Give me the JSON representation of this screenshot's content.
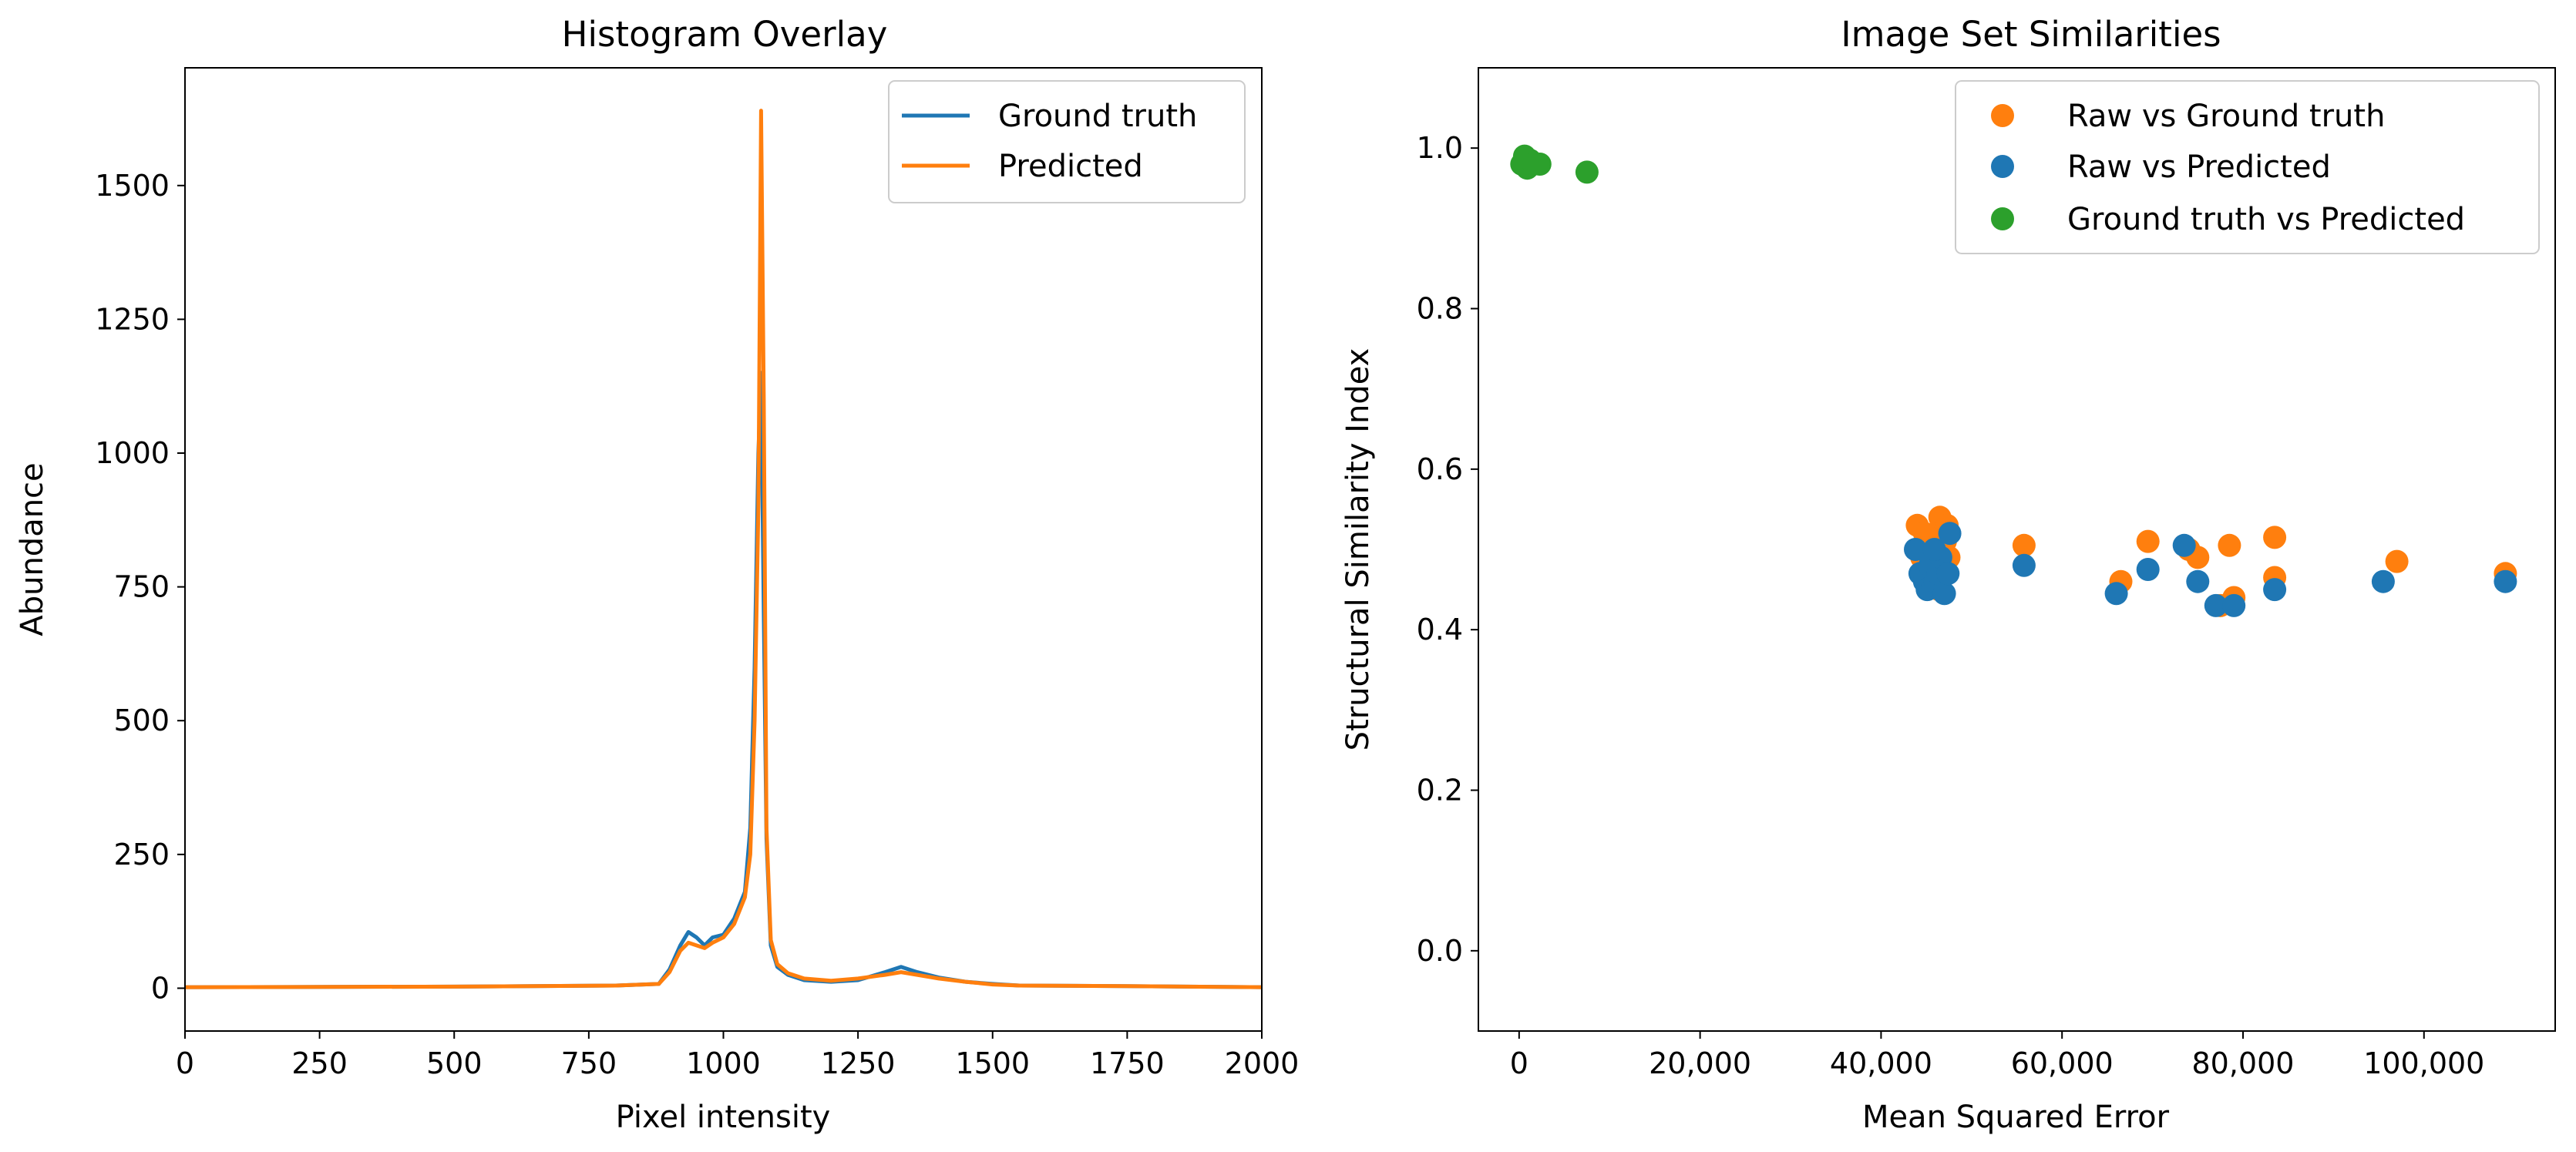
{
  "chart_data": [
    {
      "type": "line",
      "title": "Histogram Overlay",
      "xlabel": "Pixel intensity",
      "ylabel": "Abundance",
      "xlim": [
        0,
        2000
      ],
      "ylim": [
        -80,
        1720
      ],
      "xticks": [
        0,
        250,
        500,
        750,
        1000,
        1250,
        1500,
        1750,
        2000
      ],
      "xtick_labels": [
        "0",
        "250",
        "500",
        "750",
        "1000",
        "1250",
        "1500",
        "1750",
        "2000"
      ],
      "yticks": [
        0,
        250,
        500,
        750,
        1000,
        1250,
        1500
      ],
      "ytick_labels": [
        "0",
        "250",
        "500",
        "750",
        "1000",
        "1250",
        "1500"
      ],
      "grid": false,
      "legend_position": "top-right",
      "series": [
        {
          "name": "Ground truth",
          "color": "#1f77b4",
          "x": [
            0,
            500,
            800,
            880,
            900,
            920,
            935,
            950,
            965,
            980,
            1000,
            1020,
            1040,
            1050,
            1058,
            1065,
            1070,
            1075,
            1080,
            1088,
            1100,
            1120,
            1150,
            1200,
            1250,
            1300,
            1330,
            1360,
            1400,
            1450,
            1500,
            1550,
            1750,
            2000
          ],
          "values": [
            2,
            3,
            5,
            8,
            35,
            80,
            105,
            95,
            80,
            95,
            100,
            130,
            180,
            300,
            600,
            1000,
            1150,
            700,
            280,
            80,
            40,
            25,
            15,
            12,
            15,
            30,
            40,
            30,
            20,
            12,
            8,
            5,
            4,
            2
          ]
        },
        {
          "name": "Predicted",
          "color": "#ff7f0e",
          "x": [
            0,
            500,
            800,
            880,
            900,
            920,
            935,
            950,
            965,
            980,
            1000,
            1020,
            1040,
            1050,
            1058,
            1065,
            1070,
            1075,
            1080,
            1088,
            1100,
            1120,
            1150,
            1200,
            1250,
            1300,
            1330,
            1360,
            1400,
            1450,
            1500,
            1550,
            1750,
            2000
          ],
          "values": [
            2,
            3,
            5,
            8,
            30,
            70,
            85,
            80,
            75,
            85,
            95,
            120,
            170,
            250,
            500,
            900,
            1640,
            1100,
            300,
            90,
            45,
            28,
            18,
            14,
            18,
            25,
            30,
            25,
            18,
            12,
            7,
            5,
            4,
            2
          ]
        }
      ]
    },
    {
      "type": "scatter",
      "title": "Image Set Similarities",
      "xlabel": "Mean Squared Error",
      "ylabel": "Structural Similarity Index",
      "xlim": [
        -4500,
        114500
      ],
      "ylim": [
        -0.1,
        1.1
      ],
      "xticks": [
        0,
        20000,
        40000,
        60000,
        80000,
        100000
      ],
      "xtick_labels": [
        "0",
        "20,000",
        "40,000",
        "60,000",
        "80,000",
        "100,000"
      ],
      "yticks": [
        0.0,
        0.2,
        0.4,
        0.6,
        0.8,
        1.0
      ],
      "ytick_labels": [
        "0.0",
        "0.2",
        "0.4",
        "0.6",
        "0.8",
        "1.0"
      ],
      "grid": false,
      "legend_position": "top-right",
      "series": [
        {
          "name": "Raw vs Ground truth",
          "color": "#ff7f0e",
          "x": [
            44000,
            44500,
            45000,
            45200,
            45500,
            45800,
            46000,
            46200,
            46500,
            46800,
            47000,
            47300,
            47500,
            44800,
            45600,
            46400,
            47100,
            55800,
            66500,
            69500,
            74000,
            75000,
            77500,
            78500,
            79000,
            83500,
            83500,
            97000,
            109000
          ],
          "values": [
            0.53,
            0.49,
            0.5,
            0.47,
            0.51,
            0.46,
            0.52,
            0.48,
            0.54,
            0.5,
            0.47,
            0.53,
            0.49,
            0.52,
            0.48,
            0.45,
            0.51,
            0.505,
            0.46,
            0.51,
            0.5,
            0.49,
            0.43,
            0.505,
            0.44,
            0.515,
            0.465,
            0.485,
            0.47
          ]
        },
        {
          "name": "Raw vs Predicted",
          "color": "#1f77b4",
          "x": [
            43800,
            44300,
            44800,
            45100,
            45400,
            45700,
            46000,
            46300,
            46600,
            47000,
            47400,
            47600,
            45900,
            55800,
            66000,
            69500,
            73500,
            75000,
            77000,
            79000,
            83500,
            95500,
            109000
          ],
          "values": [
            0.5,
            0.47,
            0.46,
            0.45,
            0.48,
            0.455,
            0.46,
            0.47,
            0.49,
            0.445,
            0.47,
            0.52,
            0.5,
            0.48,
            0.445,
            0.475,
            0.505,
            0.46,
            0.43,
            0.43,
            0.45,
            0.46,
            0.46
          ]
        },
        {
          "name": "Ground truth vs Predicted",
          "color": "#2ca02c",
          "x": [
            300,
            600,
            900,
            1200,
            1600,
            2300,
            7500
          ],
          "values": [
            0.98,
            0.99,
            0.975,
            0.985,
            0.98,
            0.98,
            0.97
          ]
        }
      ]
    }
  ]
}
